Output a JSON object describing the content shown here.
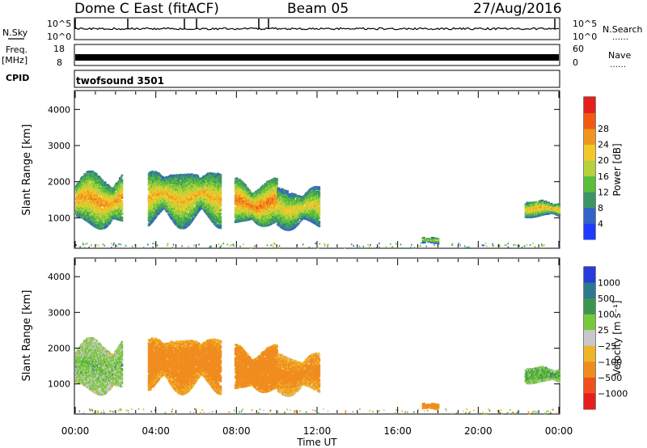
{
  "header": {
    "title": "Dome C East (fitACF)",
    "beam": "Beam 05",
    "date": "27/Aug/2016"
  },
  "top_panels": {
    "nsky_label": "N.Sky",
    "nsky_ticks": [
      "10^5",
      "10^0"
    ],
    "nsearch_label": "N.Search",
    "nsearch_ticks": [
      "10^5",
      "10^0"
    ],
    "freq_label": "Freq.",
    "freq_unit": "[MHz]",
    "freq_ticks": [
      "18",
      "8"
    ],
    "nave_label": "Nave",
    "nave_ticks": [
      "60",
      "0"
    ],
    "cpid_label": "CPID",
    "cpid_value": "twofsound 3501"
  },
  "chart_data": [
    {
      "type": "heatmap",
      "panel": "power",
      "title": "",
      "xlabel": "",
      "ylabel": "Slant Range [km]",
      "ylim": [
        180,
        4500
      ],
      "xlim": [
        0,
        24
      ],
      "x_ticks": [
        0,
        4,
        8,
        12,
        16,
        20,
        24
      ],
      "y_ticks": [
        1000,
        2000,
        3000,
        4000
      ],
      "colorbar": {
        "label": "Power [dB]",
        "ticks": [
          "4",
          "8",
          "12",
          "16",
          "20",
          "24",
          "28"
        ],
        "colors": [
          "#1e3cff",
          "#3264c8",
          "#3c9664",
          "#5abe3c",
          "#b4d23c",
          "#f0c828",
          "#f0961e",
          "#f05a14",
          "#e61e1e"
        ]
      },
      "echo_regions": [
        {
          "t_start": 0.0,
          "t_end": 2.3,
          "r_min": 700,
          "r_max": 2200,
          "dB": 24
        },
        {
          "t_start": 3.6,
          "t_end": 7.2,
          "r_min": 800,
          "r_max": 2300,
          "dB": 22
        },
        {
          "t_start": 7.9,
          "t_end": 10.0,
          "r_min": 750,
          "r_max": 2000,
          "dB": 26
        },
        {
          "t_start": 10.0,
          "t_end": 12.1,
          "r_min": 700,
          "r_max": 1800,
          "dB": 20
        },
        {
          "t_start": 17.2,
          "t_end": 18.0,
          "r_min": 250,
          "r_max": 450,
          "dB": 18
        },
        {
          "t_start": 22.3,
          "t_end": 24.0,
          "r_min": 1000,
          "r_max": 1450,
          "dB": 22
        }
      ]
    },
    {
      "type": "heatmap",
      "panel": "velocity",
      "title": "",
      "xlabel": "Time UT",
      "ylabel": "Slant Range [km]",
      "ylim": [
        180,
        4500
      ],
      "xlim": [
        0,
        24
      ],
      "x_ticks": [
        0,
        4,
        8,
        12,
        16,
        20,
        24
      ],
      "x_tick_labels": [
        "00:00",
        "04:00",
        "08:00",
        "12:00",
        "16:00",
        "20:00",
        "00:00"
      ],
      "y_ticks": [
        1000,
        2000,
        3000,
        4000
      ],
      "colorbar": {
        "label": "Velocity [m s⁻¹]",
        "ticks": [
          "1000",
          "500",
          "100",
          "25",
          "−25",
          "−100",
          "−500",
          "−1000"
        ],
        "colors": [
          "#283cdc",
          "#2e7890",
          "#3c9650",
          "#78c83c",
          "#c8c8c8",
          "#f0b428",
          "#f08c1e",
          "#f0501e",
          "#e61e1e"
        ]
      },
      "echo_regions": [
        {
          "t_start": 0.0,
          "t_end": 2.3,
          "r_min": 700,
          "r_max": 2200,
          "velocity": 50
        },
        {
          "t_start": 3.6,
          "t_end": 7.2,
          "r_min": 800,
          "r_max": 2300,
          "velocity": -200
        },
        {
          "t_start": 7.9,
          "t_end": 10.0,
          "r_min": 750,
          "r_max": 2000,
          "velocity": -300
        },
        {
          "t_start": 10.0,
          "t_end": 12.1,
          "r_min": 700,
          "r_max": 1800,
          "velocity": -150
        },
        {
          "t_start": 17.2,
          "t_end": 18.0,
          "r_min": 250,
          "r_max": 450,
          "velocity": -300
        },
        {
          "t_start": 22.3,
          "t_end": 24.0,
          "r_min": 1000,
          "r_max": 1450,
          "velocity": 100
        }
      ]
    }
  ]
}
